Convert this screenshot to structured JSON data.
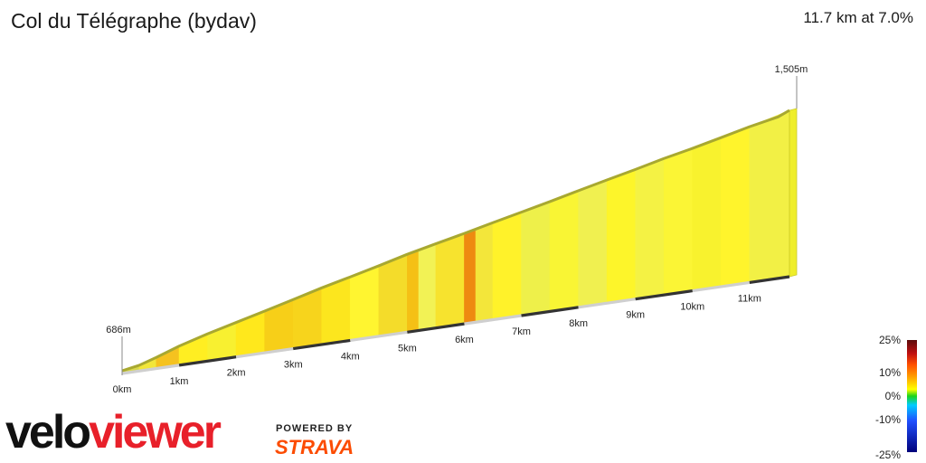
{
  "header": {
    "title": "Col du Télégraphe (bydav)",
    "summary": "11.7 km at 7.0%"
  },
  "chart_data": {
    "type": "area",
    "title": "Col du Télégraphe (bydav)",
    "distance_unit": "km",
    "elevation_unit": "m",
    "start_label": "686m",
    "end_label": "1,505m",
    "x_ticks": [
      "0km",
      "1km",
      "2km",
      "3km",
      "4km",
      "5km",
      "6km",
      "7km",
      "8km",
      "9km",
      "10km",
      "11km"
    ],
    "x_range": [
      0,
      11.7
    ],
    "y_range": [
      686,
      1505
    ],
    "series": [
      {
        "distance_km": [
          0,
          0.3,
          0.6,
          1.0,
          1.5,
          2.0,
          2.5,
          3.0,
          3.5,
          4.0,
          4.5,
          5.0,
          5.5,
          6.0,
          6.5,
          7.0,
          7.5,
          8.0,
          8.5,
          9.0,
          9.5,
          10.0,
          10.5,
          11.0,
          11.5,
          11.7
        ],
        "elevation_m": [
          686,
          701,
          728,
          768,
          809,
          845,
          881,
          918,
          956,
          990,
          1025,
          1062,
          1094,
          1125,
          1158,
          1190,
          1222,
          1256,
          1289,
          1321,
          1355,
          1385,
          1418,
          1452,
          1480,
          1505
        ]
      }
    ],
    "segments": [
      {
        "from": 0.0,
        "to": 0.3,
        "color": "#d8d84a"
      },
      {
        "from": 0.3,
        "to": 0.6,
        "color": "#f2e63a"
      },
      {
        "from": 0.6,
        "to": 1.0,
        "color": "#f5c21f"
      },
      {
        "from": 1.0,
        "to": 1.5,
        "color": "#ffee22"
      },
      {
        "from": 1.5,
        "to": 2.0,
        "color": "#f8f030"
      },
      {
        "from": 2.0,
        "to": 2.5,
        "color": "#ffe81c"
      },
      {
        "from": 2.5,
        "to": 3.0,
        "color": "#f7cf18"
      },
      {
        "from": 3.0,
        "to": 3.5,
        "color": "#f7d41c"
      },
      {
        "from": 3.5,
        "to": 4.0,
        "color": "#fce61e"
      },
      {
        "from": 4.0,
        "to": 4.5,
        "color": "#fff530"
      },
      {
        "from": 4.5,
        "to": 5.0,
        "color": "#f4dc2a"
      },
      {
        "from": 5.0,
        "to": 5.2,
        "color": "#f5c015"
      },
      {
        "from": 5.2,
        "to": 5.5,
        "color": "#f2f255"
      },
      {
        "from": 5.5,
        "to": 6.0,
        "color": "#f7e32e"
      },
      {
        "from": 6.0,
        "to": 6.2,
        "color": "#ee8a10"
      },
      {
        "from": 6.2,
        "to": 6.5,
        "color": "#f3e63a"
      },
      {
        "from": 6.5,
        "to": 7.0,
        "color": "#fff22a"
      },
      {
        "from": 7.0,
        "to": 7.5,
        "color": "#eef04a"
      },
      {
        "from": 7.5,
        "to": 8.0,
        "color": "#f9f534"
      },
      {
        "from": 8.0,
        "to": 8.5,
        "color": "#f0f050"
      },
      {
        "from": 8.5,
        "to": 9.0,
        "color": "#fdf52a"
      },
      {
        "from": 9.0,
        "to": 9.5,
        "color": "#f4f244"
      },
      {
        "from": 9.5,
        "to": 10.0,
        "color": "#fbf535"
      },
      {
        "from": 10.0,
        "to": 10.5,
        "color": "#f8f22e"
      },
      {
        "from": 10.5,
        "to": 11.0,
        "color": "#fff42c"
      },
      {
        "from": 11.0,
        "to": 11.7,
        "color": "#f2f045"
      }
    ]
  },
  "legend": {
    "labels": [
      "25%",
      "10%",
      "0%",
      "-10%",
      "-25%"
    ]
  },
  "branding": {
    "logo_velo": "velo",
    "logo_viewer": "viewer",
    "powered_by": "POWERED BY",
    "strava": "STRAVA"
  },
  "colors": {
    "baseline_dark": "#333333",
    "baseline_light": "#cfcfcf",
    "outline": "#a8a830",
    "side": "#efee2a"
  }
}
